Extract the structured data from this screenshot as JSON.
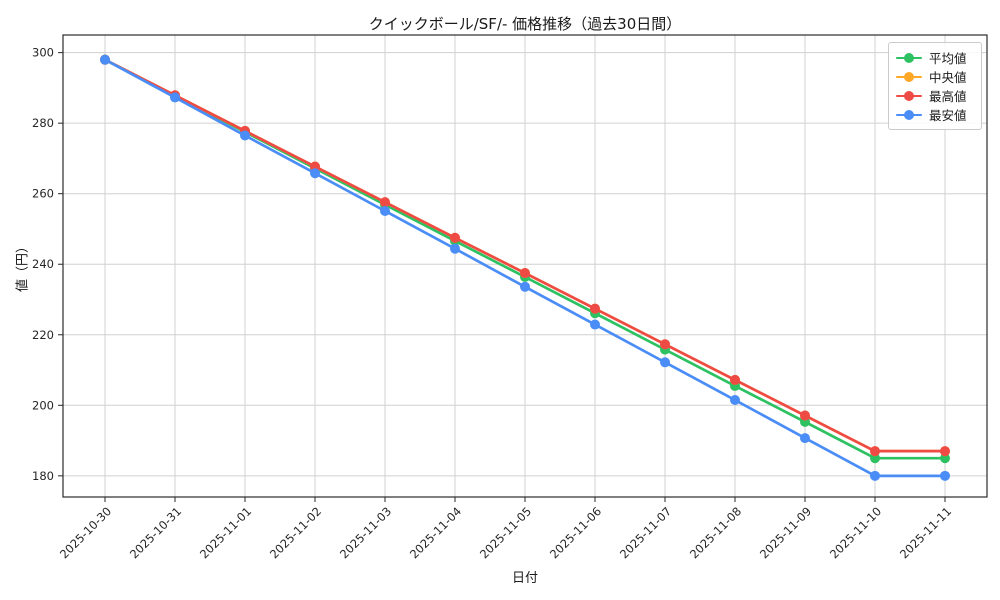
{
  "chart_data": {
    "type": "line",
    "title": "クイックボール/SF/- 価格推移（過去30日間）",
    "xlabel": "日付",
    "ylabel": "値（円）",
    "x": [
      "2025-10-30",
      "2025-10-31",
      "2025-11-01",
      "2025-11-02",
      "2025-11-03",
      "2025-11-04",
      "2025-11-05",
      "2025-11-06",
      "2025-11-07",
      "2025-11-08",
      "2025-11-09",
      "2025-11-10",
      "2025-11-11"
    ],
    "ylim": [
      174,
      305
    ],
    "yticks": [
      180,
      200,
      220,
      240,
      260,
      280,
      300
    ],
    "grid": true,
    "legend_position": "upper right",
    "series": [
      {
        "key": "average",
        "name": "平均値",
        "color": "#2ec162",
        "values": [
          298,
          287.7,
          277.5,
          267.2,
          256.9,
          246.6,
          236.4,
          226.1,
          215.8,
          205.5,
          195.3,
          185,
          185
        ]
      },
      {
        "key": "median",
        "name": "中央値",
        "color": "#ffa726",
        "values": [
          298,
          287.9,
          277.8,
          267.7,
          257.6,
          247.5,
          237.5,
          227.4,
          217.3,
          207.2,
          197.1,
          187,
          187
        ]
      },
      {
        "key": "max",
        "name": "最高値",
        "color": "#ef4b45",
        "values": [
          298,
          287.9,
          277.8,
          267.7,
          257.6,
          247.5,
          237.5,
          227.4,
          217.3,
          207.2,
          197.1,
          187,
          187
        ]
      },
      {
        "key": "min",
        "name": "最安値",
        "color": "#4a8df7",
        "values": [
          298,
          287.3,
          276.5,
          265.8,
          255.1,
          244.4,
          233.6,
          222.9,
          212.2,
          201.5,
          190.7,
          180,
          180
        ]
      }
    ],
    "colors": {
      "grid": "#d0d0d0",
      "spine": "#2b2b2b",
      "tick_text": "#262626",
      "background": "#ffffff"
    }
  }
}
